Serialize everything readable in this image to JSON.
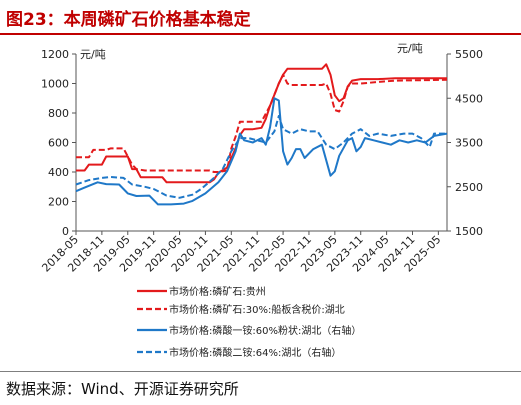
{
  "header": {
    "title": "图23：本周磷矿石价格基本稳定"
  },
  "footer": {
    "source": "数据来源：Wind、开源证券研究所"
  },
  "colors": {
    "red": "#e31a1c",
    "blue": "#1f78c8",
    "title": "#c00000"
  },
  "chart_data": {
    "type": "line",
    "y_left": {
      "unit": "元/吨",
      "range": [
        0,
        1200
      ],
      "ticks": [
        0,
        200,
        400,
        600,
        800,
        1000,
        1200
      ]
    },
    "y_right": {
      "unit": "元/吨",
      "range": [
        1500,
        5500
      ],
      "ticks": [
        1500,
        2500,
        3500,
        4500,
        5500
      ]
    },
    "x_range": [
      "2018-05",
      "2025-07"
    ],
    "x_ticks": [
      "2018-05",
      "2018-11",
      "2019-05",
      "2019-11",
      "2020-05",
      "2020-11",
      "2021-05",
      "2021-11",
      "2022-05",
      "2022-11",
      "2023-05",
      "2023-11",
      "2024-05",
      "2024-11",
      "2025-05"
    ],
    "grid": false,
    "legend_position": "bottom",
    "series": [
      {
        "name": "市场价格:磷矿石:贵州",
        "axis": "left",
        "color": "#e31a1c",
        "style": "solid",
        "points": [
          [
            "2018-05",
            410
          ],
          [
            "2018-07",
            410
          ],
          [
            "2018-08",
            450
          ],
          [
            "2018-11",
            450
          ],
          [
            "2018-12",
            505
          ],
          [
            "2019-05",
            505
          ],
          [
            "2019-06",
            420
          ],
          [
            "2019-07",
            420
          ],
          [
            "2019-08",
            365
          ],
          [
            "2020-01",
            365
          ],
          [
            "2020-02",
            330
          ],
          [
            "2020-12",
            330
          ],
          [
            "2021-01",
            350
          ],
          [
            "2021-02",
            395
          ],
          [
            "2021-04",
            430
          ],
          [
            "2021-06",
            560
          ],
          [
            "2021-07",
            650
          ],
          [
            "2021-08",
            690
          ],
          [
            "2021-10",
            690
          ],
          [
            "2021-12",
            700
          ],
          [
            "2022-01",
            760
          ],
          [
            "2022-02",
            850
          ],
          [
            "2022-04",
            1000
          ],
          [
            "2022-05",
            1060
          ],
          [
            "2022-06",
            1100
          ],
          [
            "2022-08",
            1100
          ],
          [
            "2022-10",
            1100
          ],
          [
            "2022-12",
            1100
          ],
          [
            "2023-02",
            1100
          ],
          [
            "2023-03",
            1130
          ],
          [
            "2023-04",
            1060
          ],
          [
            "2023-05",
            920
          ],
          [
            "2023-06",
            880
          ],
          [
            "2023-07",
            900
          ],
          [
            "2023-08",
            980
          ],
          [
            "2023-09",
            1020
          ],
          [
            "2023-11",
            1030
          ],
          [
            "2024-03",
            1030
          ],
          [
            "2024-07",
            1035
          ],
          [
            "2025-07",
            1035
          ]
        ]
      },
      {
        "name": "市场价格:磷矿石:30%:船板含税价:湖北",
        "axis": "left",
        "color": "#e31a1c",
        "style": "dashed",
        "points": [
          [
            "2018-05",
            500
          ],
          [
            "2018-08",
            500
          ],
          [
            "2018-09",
            550
          ],
          [
            "2018-12",
            550
          ],
          [
            "2019-01",
            560
          ],
          [
            "2019-04",
            560
          ],
          [
            "2019-06",
            450
          ],
          [
            "2019-07",
            420
          ],
          [
            "2019-09",
            410
          ],
          [
            "2020-01",
            410
          ],
          [
            "2020-02",
            410
          ],
          [
            "2020-09",
            410
          ],
          [
            "2020-12",
            410
          ],
          [
            "2021-01",
            400
          ],
          [
            "2021-02",
            400
          ],
          [
            "2021-04",
            410
          ],
          [
            "2021-05",
            560
          ],
          [
            "2021-06",
            640
          ],
          [
            "2021-07",
            740
          ],
          [
            "2021-09",
            740
          ],
          [
            "2021-12",
            740
          ],
          [
            "2022-02",
            850
          ],
          [
            "2022-04",
            1000
          ],
          [
            "2022-05",
            1060
          ],
          [
            "2022-06",
            1000
          ],
          [
            "2022-07",
            990
          ],
          [
            "2022-09",
            990
          ],
          [
            "2023-02",
            990
          ],
          [
            "2023-03",
            1000
          ],
          [
            "2023-04",
            930
          ],
          [
            "2023-05",
            820
          ],
          [
            "2023-06",
            810
          ],
          [
            "2023-07",
            880
          ],
          [
            "2023-08",
            980
          ],
          [
            "2023-09",
            1000
          ],
          [
            "2023-11",
            1000
          ],
          [
            "2024-03",
            1010
          ],
          [
            "2024-07",
            1020
          ],
          [
            "2025-07",
            1025
          ]
        ]
      },
      {
        "name": "市场价格:磷酸一铵:60%粉状:湖北（右轴）",
        "axis": "right",
        "color": "#1f78c8",
        "style": "solid",
        "points": [
          [
            "2018-05",
            2400
          ],
          [
            "2018-07",
            2480
          ],
          [
            "2018-10",
            2600
          ],
          [
            "2018-12",
            2560
          ],
          [
            "2019-03",
            2550
          ],
          [
            "2019-05",
            2350
          ],
          [
            "2019-07",
            2290
          ],
          [
            "2019-10",
            2300
          ],
          [
            "2019-12",
            2100
          ],
          [
            "2020-03",
            2100
          ],
          [
            "2020-06",
            2120
          ],
          [
            "2020-08",
            2180
          ],
          [
            "2020-11",
            2350
          ],
          [
            "2021-02",
            2600
          ],
          [
            "2021-04",
            2850
          ],
          [
            "2021-06",
            3300
          ],
          [
            "2021-07",
            3700
          ],
          [
            "2021-08",
            3550
          ],
          [
            "2021-10",
            3500
          ],
          [
            "2021-12",
            3600
          ],
          [
            "2022-01",
            3450
          ],
          [
            "2022-02",
            3850
          ],
          [
            "2022-03",
            4500
          ],
          [
            "2022-04",
            4450
          ],
          [
            "2022-05",
            3300
          ],
          [
            "2022-06",
            3000
          ],
          [
            "2022-07",
            3150
          ],
          [
            "2022-08",
            3350
          ],
          [
            "2022-09",
            3350
          ],
          [
            "2022-10",
            3150
          ],
          [
            "2022-12",
            3350
          ],
          [
            "2023-02",
            3450
          ],
          [
            "2023-03",
            3100
          ],
          [
            "2023-04",
            2750
          ],
          [
            "2023-05",
            2850
          ],
          [
            "2023-06",
            3200
          ],
          [
            "2023-08",
            3550
          ],
          [
            "2023-09",
            3600
          ],
          [
            "2023-10",
            3300
          ],
          [
            "2023-11",
            3400
          ],
          [
            "2023-12",
            3600
          ],
          [
            "2024-02",
            3550
          ],
          [
            "2024-04",
            3500
          ],
          [
            "2024-06",
            3450
          ],
          [
            "2024-08",
            3550
          ],
          [
            "2024-10",
            3500
          ],
          [
            "2024-12",
            3550
          ],
          [
            "2025-02",
            3500
          ],
          [
            "2025-04",
            3650
          ],
          [
            "2025-07",
            3700
          ]
        ]
      },
      {
        "name": "市场价格:磷酸二铵:64%:湖北（右轴）",
        "axis": "right",
        "color": "#1f78c8",
        "style": "dashed",
        "points": [
          [
            "2018-05",
            2550
          ],
          [
            "2018-08",
            2650
          ],
          [
            "2018-11",
            2700
          ],
          [
            "2019-01",
            2720
          ],
          [
            "2019-04",
            2700
          ],
          [
            "2019-06",
            2550
          ],
          [
            "2019-09",
            2500
          ],
          [
            "2019-11",
            2450
          ],
          [
            "2020-02",
            2300
          ],
          [
            "2020-05",
            2250
          ],
          [
            "2020-08",
            2320
          ],
          [
            "2020-10",
            2450
          ],
          [
            "2021-01",
            2700
          ],
          [
            "2021-03",
            2900
          ],
          [
            "2021-05",
            3300
          ],
          [
            "2021-07",
            3600
          ],
          [
            "2021-09",
            3600
          ],
          [
            "2021-11",
            3550
          ],
          [
            "2022-01",
            3500
          ],
          [
            "2022-03",
            3750
          ],
          [
            "2022-04",
            4100
          ],
          [
            "2022-05",
            3800
          ],
          [
            "2022-07",
            3700
          ],
          [
            "2022-09",
            3800
          ],
          [
            "2022-11",
            3750
          ],
          [
            "2023-01",
            3750
          ],
          [
            "2023-03",
            3450
          ],
          [
            "2023-05",
            3350
          ],
          [
            "2023-07",
            3500
          ],
          [
            "2023-09",
            3700
          ],
          [
            "2023-11",
            3800
          ],
          [
            "2024-01",
            3650
          ],
          [
            "2024-03",
            3700
          ],
          [
            "2024-06",
            3650
          ],
          [
            "2024-09",
            3700
          ],
          [
            "2024-11",
            3700
          ],
          [
            "2025-01",
            3600
          ],
          [
            "2025-03",
            3400
          ],
          [
            "2025-04",
            3700
          ],
          [
            "2025-07",
            3700
          ]
        ]
      }
    ]
  }
}
